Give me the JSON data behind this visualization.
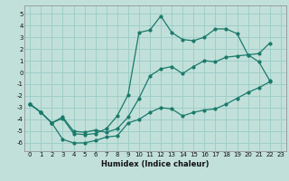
{
  "title": "",
  "xlabel": "Humidex (Indice chaleur)",
  "bg_color": "#c2e0da",
  "grid_color": "#9ecec8",
  "line_color": "#1a7a6a",
  "xlim": [
    -0.5,
    23.5
  ],
  "ylim": [
    -6.7,
    5.7
  ],
  "xticks": [
    0,
    1,
    2,
    3,
    4,
    5,
    6,
    7,
    8,
    9,
    10,
    11,
    12,
    13,
    14,
    15,
    16,
    17,
    18,
    19,
    20,
    21,
    22,
    23
  ],
  "yticks": [
    -6,
    -5,
    -4,
    -3,
    -2,
    -1,
    0,
    1,
    2,
    3,
    4,
    5
  ],
  "line_top_x": [
    0,
    1,
    2,
    3,
    4,
    5,
    6,
    7,
    8,
    9,
    10,
    11,
    12,
    13,
    14,
    15,
    16,
    17,
    18,
    19,
    20,
    21,
    22
  ],
  "line_top_y": [
    -2.7,
    -3.4,
    -4.3,
    -3.9,
    -5.2,
    -5.3,
    -5.2,
    -4.8,
    -3.7,
    -1.9,
    3.4,
    3.6,
    4.8,
    3.4,
    2.8,
    2.7,
    3.0,
    3.7,
    3.7,
    3.3,
    1.5,
    0.9,
    -0.7
  ],
  "line_mid_x": [
    0,
    1,
    2,
    3,
    4,
    5,
    6,
    7,
    8,
    9,
    10,
    11,
    12,
    13,
    14,
    15,
    16,
    17,
    18,
    19,
    20,
    21,
    22
  ],
  "line_mid_y": [
    -2.7,
    -3.4,
    -4.3,
    -3.8,
    -5.0,
    -5.1,
    -4.9,
    -5.1,
    -4.8,
    -3.8,
    -2.2,
    -0.3,
    0.3,
    0.5,
    -0.1,
    0.5,
    1.0,
    0.9,
    1.3,
    1.4,
    1.5,
    1.6,
    2.5
  ],
  "line_bot_x": [
    0,
    1,
    2,
    3,
    4,
    5,
    6,
    7,
    8,
    9,
    10,
    11,
    12,
    13,
    14,
    15,
    16,
    17,
    18,
    19,
    20,
    21,
    22
  ],
  "line_bot_y": [
    -2.7,
    -3.4,
    -4.3,
    -5.7,
    -6.0,
    -6.0,
    -5.8,
    -5.5,
    -5.4,
    -4.3,
    -4.0,
    -3.4,
    -3.0,
    -3.1,
    -3.7,
    -3.4,
    -3.2,
    -3.1,
    -2.7,
    -2.2,
    -1.7,
    -1.3,
    -0.8
  ]
}
